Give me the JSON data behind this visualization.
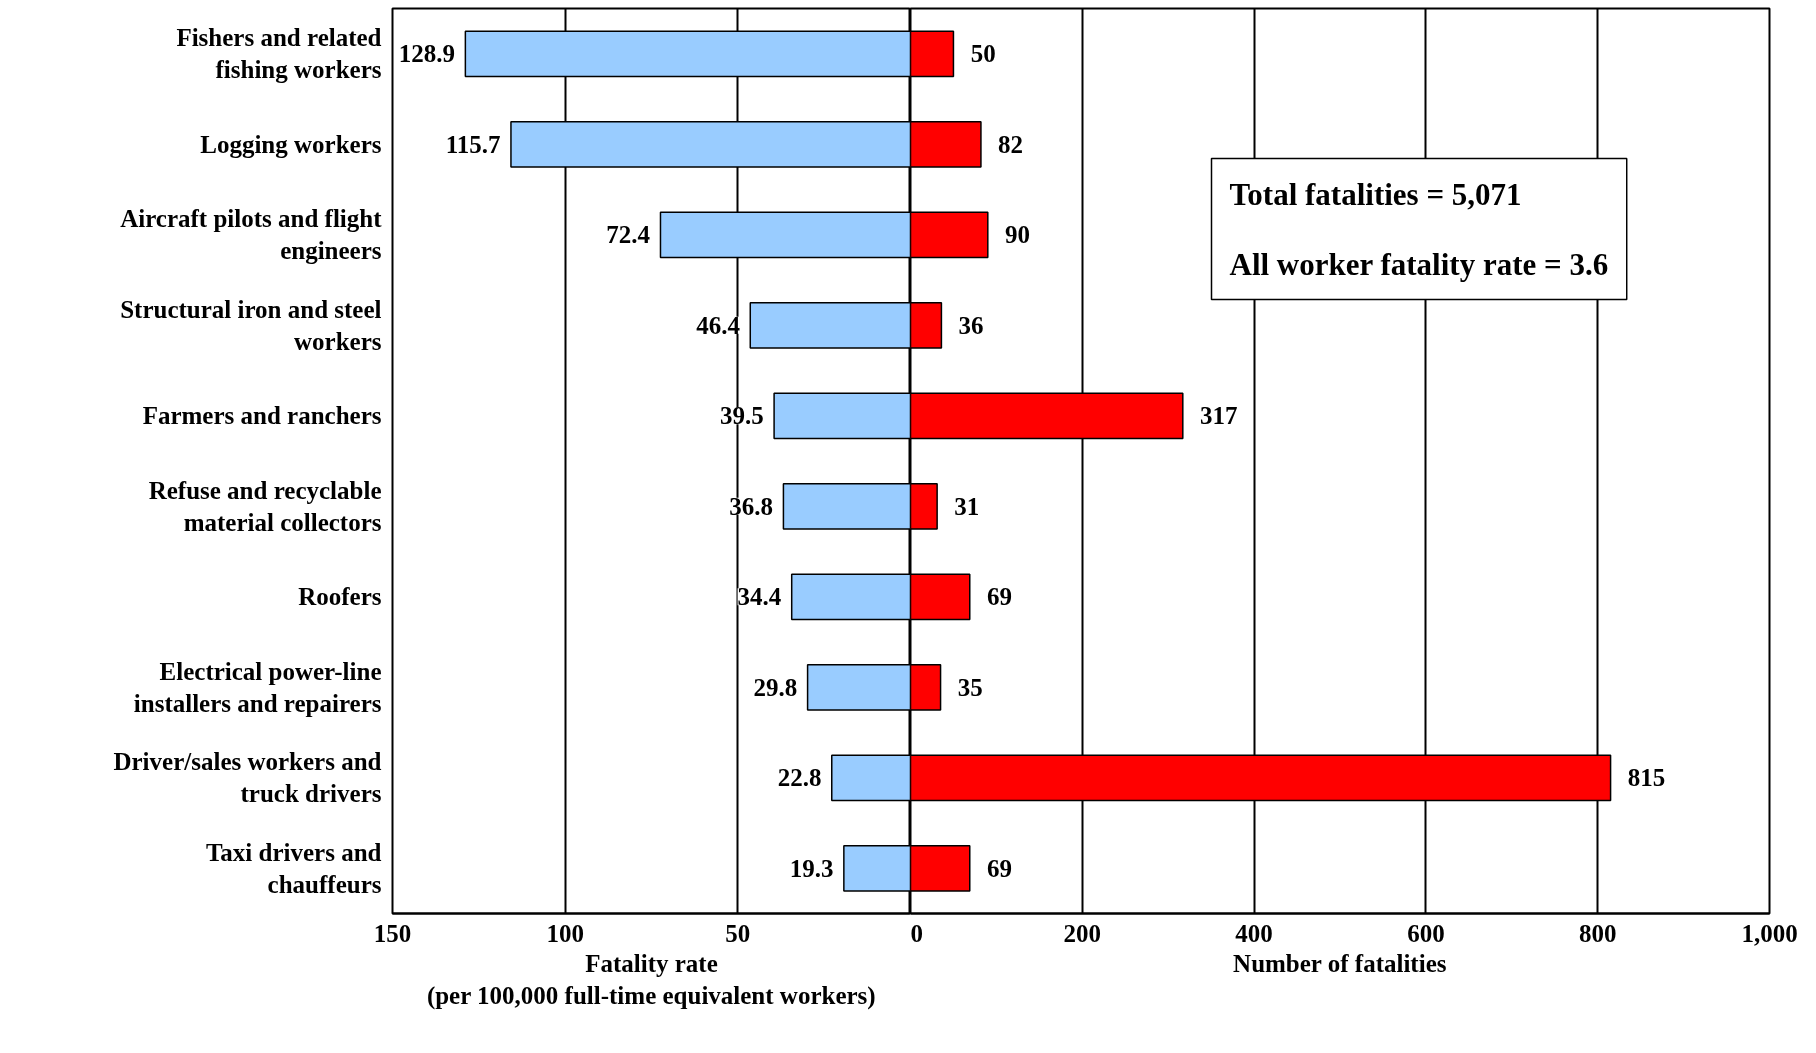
{
  "chart_data": [
    {
      "type": "bar",
      "orientation": "horizontal",
      "xlabel": "Fatality rate\n(per 100,000 full-time equivalent workers)",
      "categories": [
        "Fishers and related\nfishing workers",
        "Logging workers",
        "Aircraft pilots and flight\nengineers",
        "Structural iron and steel\nworkers",
        "Farmers and ranchers",
        "Refuse and recyclable\nmaterial collectors",
        "Roofers",
        "Electrical power-line\ninstallers and repairers",
        "Driver/sales workers and\ntruck drivers",
        "Taxi drivers and\nchauffeurs"
      ],
      "values": [
        128.9,
        115.7,
        72.4,
        46.4,
        39.5,
        36.8,
        34.4,
        29.8,
        22.8,
        19.3
      ],
      "color": "#99ccff",
      "xlim": [
        150,
        0
      ],
      "xticks": [
        150,
        100,
        50
      ],
      "grid": "x",
      "data_labels": true
    },
    {
      "type": "bar",
      "orientation": "horizontal",
      "xlabel": "Number of fatalities",
      "categories": [
        null,
        null,
        null,
        null,
        null,
        null,
        null,
        null,
        null,
        null
      ],
      "values": [
        50,
        82,
        90,
        36,
        317,
        31,
        69,
        35,
        815,
        69
      ],
      "color": "#ff0000",
      "xlim": [
        0,
        1000
      ],
      "xticks": [
        0,
        200,
        400,
        600,
        800,
        {
          "value": 1000,
          "label": "1,000"
        }
      ],
      "grid": "x",
      "data_labels": true,
      "tick_labels": "x",
      "annotations": [
        "Total fatalities = 5,071",
        "All worker fatality rate = 3.6"
      ]
    }
  ]
}
